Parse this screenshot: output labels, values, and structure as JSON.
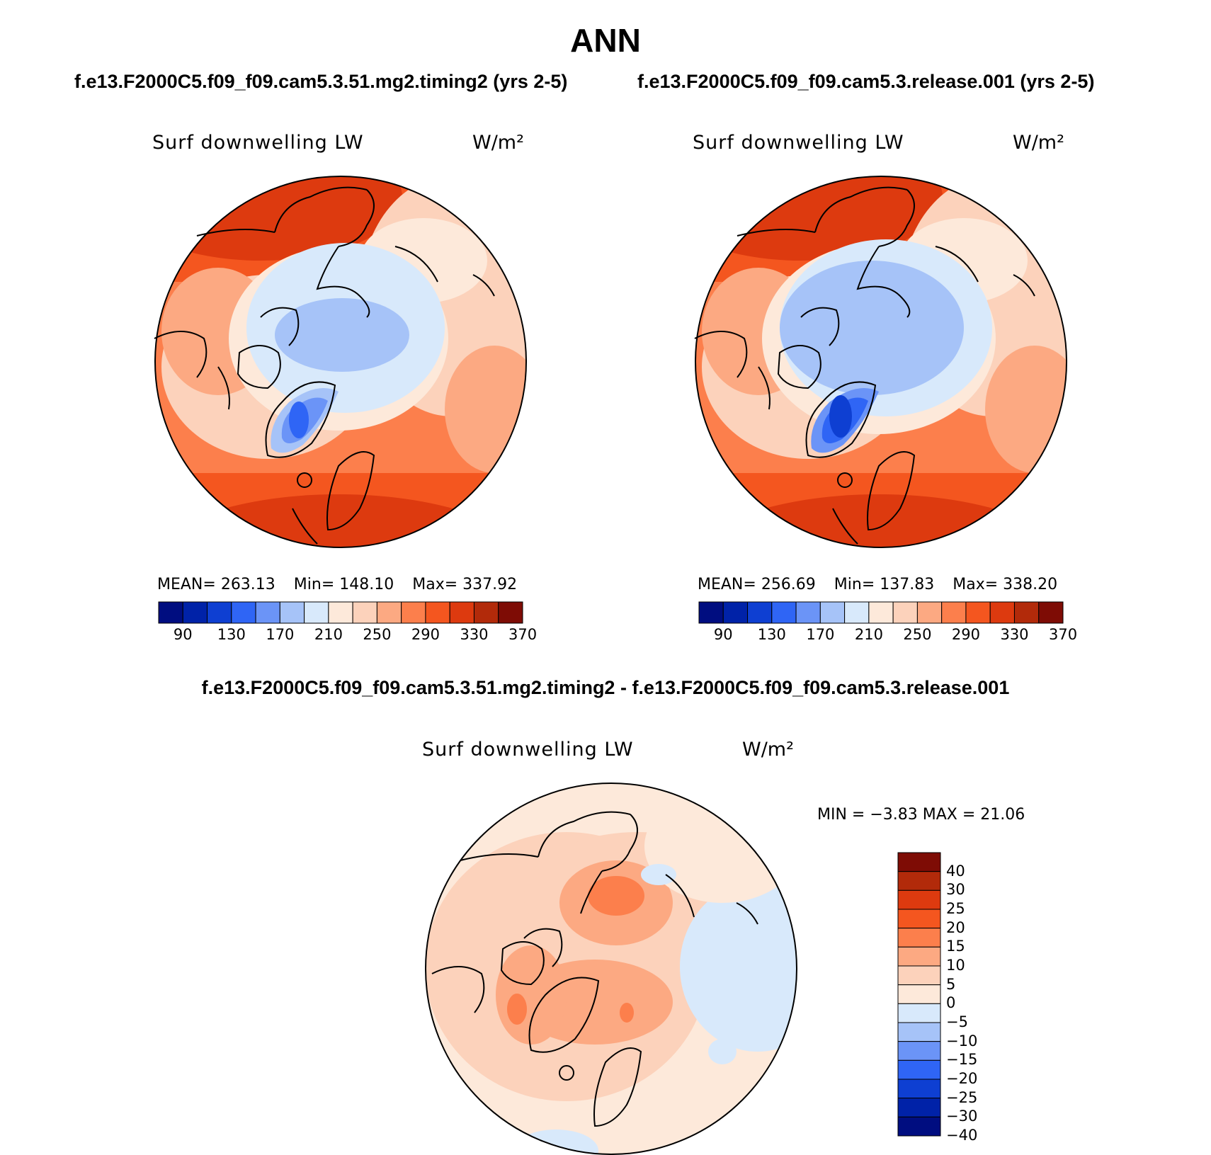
{
  "title": "ANN",
  "left_panel": {
    "case_title": "f.e13.F2000C5.f09_f09.cam5.3.51.mg2.timing2 (yrs 2-5)",
    "label": "Surf downwelling LW",
    "units": "W/m²",
    "mean": "MEAN= 263.13",
    "min": "Min= 148.10",
    "max": "Max= 337.92"
  },
  "right_panel": {
    "case_title": "f.e13.F2000C5.f09_f09.cam5.3.release.001 (yrs 2-5)",
    "label": "Surf downwelling LW",
    "units": "W/m²",
    "mean": "MEAN= 256.69",
    "min": "Min= 137.83",
    "max": "Max= 338.20"
  },
  "diff_panel": {
    "title": "f.e13.F2000C5.f09_f09.cam5.3.51.mg2.timing2 - f.e13.F2000C5.f09_f09.cam5.3.release.001",
    "label": "Surf downwelling LW",
    "units": "W/m²",
    "min_max": "MIN =   −3.83 MAX =   21.06"
  },
  "field_colorbar": {
    "colors": [
      "#000d80",
      "#0022a8",
      "#0e3fd2",
      "#2f65f5",
      "#6b94f7",
      "#a6c3f8",
      "#d8e9fb",
      "#fde9da",
      "#fcd2bb",
      "#fca982",
      "#fc7f4c",
      "#f4561f",
      "#dd3a0f",
      "#b22a0a",
      "#7e0c05"
    ],
    "labels": [
      "90",
      "130",
      "170",
      "210",
      "250",
      "290",
      "330",
      "370"
    ]
  },
  "diff_colorbar": {
    "colors": [
      "#7e0c05",
      "#b22a0a",
      "#dd3a0f",
      "#f4561f",
      "#fc7f4c",
      "#fca982",
      "#fcd2bb",
      "#fde9da",
      "#d8e9fb",
      "#a6c3f8",
      "#6b94f7",
      "#2f65f5",
      "#0e3fd2",
      "#0022a8",
      "#000d80"
    ],
    "labels": [
      "40",
      "30",
      "25",
      "20",
      "15",
      "10",
      "5",
      "0",
      "−5",
      "−10",
      "−15",
      "−20",
      "−25",
      "−30",
      "−40"
    ]
  }
}
